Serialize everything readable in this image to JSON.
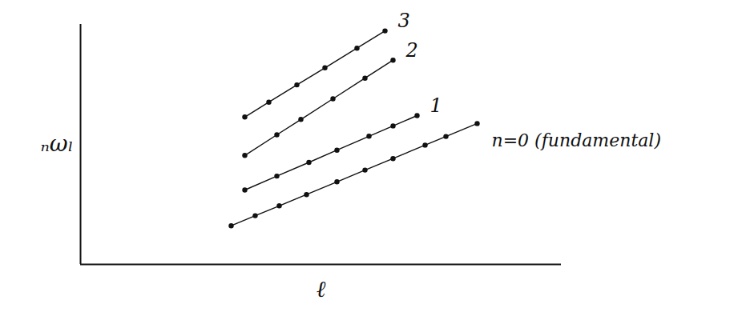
{
  "chart_data": {
    "type": "line",
    "x_label": "ℓ",
    "y_label": "ₙωₗ",
    "xlim": [
      0,
      12
    ],
    "ylim": [
      0,
      10
    ],
    "tick_labels": false,
    "grid": false,
    "color": "#111111",
    "marker": "circle",
    "line_style": "solid",
    "series": [
      {
        "name": "n=0 (fundamental)",
        "x": [
          3.76,
          4.36,
          4.96,
          5.64,
          6.4,
          7.1,
          7.8,
          8.6,
          9.12,
          9.9
        ],
        "values": [
          1.61,
          2.03,
          2.44,
          2.91,
          3.44,
          3.93,
          4.41,
          4.97,
          5.33,
          5.87
        ]
      },
      {
        "name": "1",
        "x": [
          4.1,
          4.9,
          5.7,
          6.4,
          7.2,
          7.8,
          8.4
        ],
        "values": [
          3.1,
          3.68,
          4.25,
          4.76,
          5.34,
          5.77,
          6.2
        ]
      },
      {
        "name": "2",
        "x": [
          4.1,
          4.9,
          5.5,
          6.3,
          7.1,
          7.8
        ],
        "values": [
          4.54,
          5.4,
          6.04,
          6.9,
          7.76,
          8.51
        ]
      },
      {
        "name": "3",
        "x": [
          4.1,
          4.7,
          5.4,
          6.1,
          6.9,
          7.6
        ],
        "values": [
          6.14,
          6.76,
          7.48,
          8.19,
          9.01,
          9.73
        ]
      }
    ]
  }
}
